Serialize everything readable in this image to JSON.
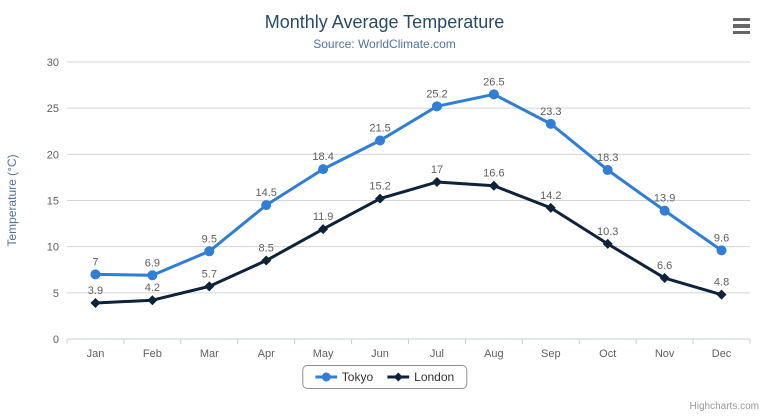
{
  "chart_data": {
    "type": "line",
    "title": "Monthly Average Temperature",
    "subtitle": "Source: WorldClimate.com",
    "xlabel": "",
    "ylabel": "Temperature (°C)",
    "categories": [
      "Jan",
      "Feb",
      "Mar",
      "Apr",
      "May",
      "Jun",
      "Jul",
      "Aug",
      "Sep",
      "Oct",
      "Nov",
      "Dec"
    ],
    "series": [
      {
        "name": "Tokyo",
        "color": "#2f7ed8",
        "marker": "circle",
        "values": [
          7,
          6.9,
          9.5,
          14.5,
          18.4,
          21.5,
          25.2,
          26.5,
          23.3,
          18.3,
          13.9,
          9.6
        ]
      },
      {
        "name": "London",
        "color": "#0d233a",
        "marker": "diamond",
        "values": [
          3.9,
          4.2,
          5.7,
          8.5,
          11.9,
          15.2,
          17,
          16.6,
          14.2,
          10.3,
          6.6,
          4.8
        ]
      }
    ],
    "ylim": [
      0,
      30
    ],
    "yticks": [
      0,
      5,
      10,
      15,
      20,
      25,
      30
    ],
    "grid": true,
    "data_labels": true,
    "legend_position": "bottom",
    "credits": "Highcharts.com"
  },
  "colors": {
    "title": "#274b6d",
    "subtitle": "#4d759e",
    "axis_labels": "#606060",
    "axis_title": "#4d759e",
    "grid": "#d4d4d4",
    "axis_line": "#c0d0e0",
    "legend_border": "#909090",
    "legend_text": "#333333",
    "credits": "#999999",
    "menu_icon": "#666666"
  }
}
